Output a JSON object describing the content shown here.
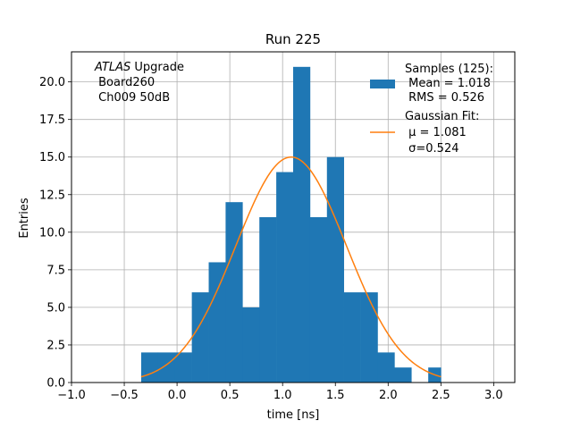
{
  "chart_data": {
    "type": "bar",
    "title": "Run 225",
    "xlabel": "time [ns]",
    "ylabel": "Entries",
    "xlim": [
      -1.0,
      3.2
    ],
    "ylim": [
      0,
      22
    ],
    "grid": true,
    "xticks": [
      -1.0,
      -0.5,
      0.0,
      0.5,
      1.0,
      1.5,
      2.0,
      2.5,
      3.0
    ],
    "xtick_labels": [
      "−1.0",
      "−0.5",
      "0.0",
      "0.5",
      "1.0",
      "1.5",
      "2.0",
      "2.5",
      "3.0"
    ],
    "yticks": [
      0.0,
      2.5,
      5.0,
      7.5,
      10.0,
      12.5,
      15.0,
      17.5,
      20.0
    ],
    "ytick_labels": [
      "0.0",
      "2.5",
      "5.0",
      "7.5",
      "10.0",
      "12.5",
      "15.0",
      "17.5",
      "20.0"
    ],
    "histogram": {
      "name": "Samples (125):",
      "color": "#1f77b4",
      "bin_edges": [
        -0.34,
        -0.18,
        -0.02,
        0.14,
        0.3,
        0.46,
        0.62,
        0.78,
        0.94,
        1.1,
        1.26,
        1.42,
        1.58,
        1.74,
        1.9,
        2.06,
        2.22,
        2.38,
        2.5
      ],
      "counts": [
        2,
        2,
        2,
        6,
        8,
        12,
        5,
        11,
        14,
        21,
        11,
        15,
        6,
        6,
        2,
        1,
        0,
        1
      ]
    },
    "fit": {
      "name": "Gaussian Fit:",
      "color": "#ff7f0e",
      "mu": 1.081,
      "sigma": 0.524,
      "amplitude": 15.0,
      "x_range": [
        -0.34,
        2.5
      ]
    },
    "legend": {
      "position": "top-right",
      "entries": [
        {
          "lines": [
            "Samples (125):",
            " Mean = 1.018",
            " RMS = 0.526"
          ],
          "marker": "patch",
          "color": "#1f77b4"
        },
        {
          "lines": [
            "Gaussian Fit:",
            " μ = 1.081",
            " σ=0.524"
          ],
          "marker": "line",
          "color": "#ff7f0e"
        }
      ]
    },
    "annotation": {
      "position": "top-left",
      "line1_italic": "ATLAS",
      "line1_rest": " Upgrade",
      "line2": " Board260",
      "line3": " Ch009 50dB"
    }
  }
}
